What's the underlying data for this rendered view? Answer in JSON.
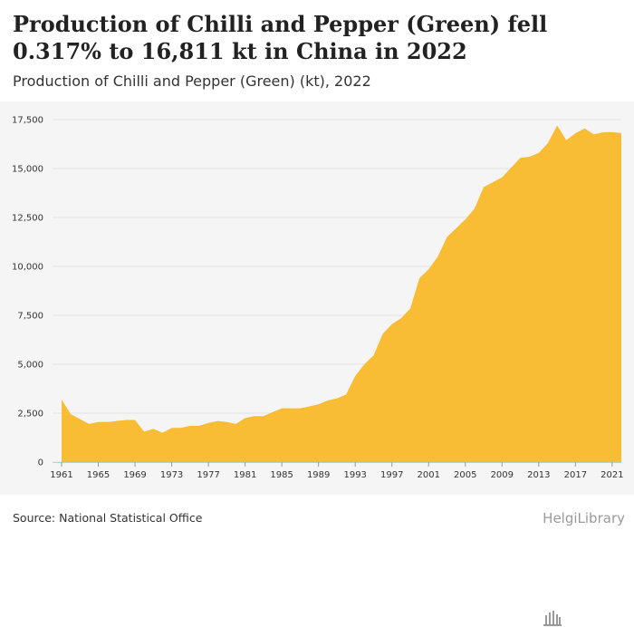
{
  "title": "Production of Chilli and Pepper (Green) fell 0.317% to 16,811 kt in China in 2022",
  "subtitle": "Production of Chilli and Pepper (Green) (kt), 2022",
  "source": "Source: National Statistical Office",
  "logo": {
    "text": "HelgiLibrary",
    "icon": "library-building-icon"
  },
  "colors": {
    "area": "#F8BC35",
    "grid": "#e2e2e2",
    "plot_bg": "#f5f5f5"
  },
  "chart_data": {
    "type": "area",
    "x": [
      1961,
      1962,
      1963,
      1964,
      1965,
      1966,
      1967,
      1968,
      1969,
      1970,
      1971,
      1972,
      1973,
      1974,
      1975,
      1976,
      1977,
      1978,
      1979,
      1980,
      1981,
      1982,
      1983,
      1984,
      1985,
      1986,
      1987,
      1988,
      1989,
      1990,
      1991,
      1992,
      1993,
      1994,
      1995,
      1996,
      1997,
      1998,
      1999,
      2000,
      2001,
      2002,
      2003,
      2004,
      2005,
      2006,
      2007,
      2008,
      2009,
      2010,
      2011,
      2012,
      2013,
      2014,
      2015,
      2016,
      2017,
      2018,
      2019,
      2020,
      2021,
      2022
    ],
    "values": [
      3200,
      2450,
      2200,
      1950,
      2050,
      2050,
      2100,
      2150,
      2150,
      1550,
      1700,
      1500,
      1750,
      1750,
      1850,
      1850,
      2000,
      2100,
      2050,
      1950,
      2250,
      2350,
      2350,
      2550,
      2750,
      2750,
      2750,
      2850,
      2950,
      3150,
      3250,
      3450,
      4400,
      5000,
      5450,
      6550,
      7050,
      7350,
      7850,
      9400,
      9850,
      10500,
      11500,
      11950,
      12400,
      12950,
      14050,
      14300,
      14550,
      15050,
      15550,
      15600,
      15800,
      16300,
      17200,
      16450,
      16800,
      17050,
      16750,
      16850,
      16864,
      16811
    ],
    "ylim": [
      0,
      17500
    ],
    "yticks": [
      0,
      2500,
      5000,
      7500,
      10000,
      12500,
      15000,
      17500
    ],
    "ytick_labels": [
      "0",
      "2,500",
      "5,000",
      "7,500",
      "10,000",
      "12,500",
      "15,000",
      "17,500"
    ],
    "xticks": [
      1961,
      1965,
      1969,
      1973,
      1977,
      1981,
      1985,
      1989,
      1993,
      1997,
      2001,
      2005,
      2009,
      2013,
      2017,
      2021
    ],
    "xtick_labels": [
      "1961",
      "1965",
      "1969",
      "1973",
      "1977",
      "1981",
      "1985",
      "1989",
      "1993",
      "1997",
      "2001",
      "2005",
      "2009",
      "2013",
      "2017",
      "2021"
    ],
    "xlabel": "",
    "ylabel": "",
    "grid": true,
    "legend": "none"
  }
}
